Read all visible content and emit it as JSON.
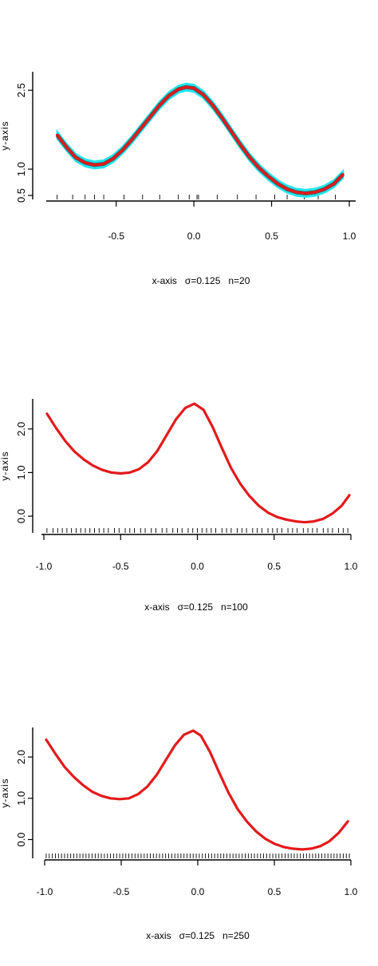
{
  "colors": {
    "fit": "#e31a1c",
    "band": "#22e6ee",
    "axis": "#000000"
  },
  "chart_data": [
    {
      "type": "line",
      "ylabel": "y-axis",
      "xlabel": {
        "axis": "x-axis",
        "sigma": "σ=0.125",
        "n": "n=20"
      },
      "xlim": [
        -0.95,
        1.0
      ],
      "ylim": [
        0.5,
        2.7
      ],
      "xticks": [
        "-0.5",
        "0.0",
        "0.5",
        "1.0"
      ],
      "xtick_values": [
        -0.5,
        0.0,
        0.5,
        1.0
      ],
      "yticks": [
        "0.5",
        "1.0",
        "2.5"
      ],
      "ytick_values": [
        0.5,
        1.0,
        2.5
      ],
      "band": true,
      "series": [
        {
          "x": [
            -0.88,
            -0.82,
            -0.76,
            -0.7,
            -0.64,
            -0.58,
            -0.52,
            -0.46,
            -0.4,
            -0.34,
            -0.28,
            -0.22,
            -0.16,
            -0.1,
            -0.05,
            0.0,
            0.06,
            0.12,
            0.18,
            0.24,
            0.3,
            0.36,
            0.42,
            0.48,
            0.54,
            0.6,
            0.66,
            0.72,
            0.78,
            0.84,
            0.9,
            0.96
          ],
          "y": [
            1.65,
            1.42,
            1.22,
            1.12,
            1.08,
            1.1,
            1.2,
            1.36,
            1.56,
            1.78,
            2.0,
            2.22,
            2.4,
            2.52,
            2.56,
            2.54,
            2.42,
            2.22,
            1.98,
            1.72,
            1.46,
            1.22,
            1.02,
            0.86,
            0.72,
            0.62,
            0.56,
            0.54,
            0.56,
            0.62,
            0.72,
            0.9
          ],
          "band_width": 0.07
        }
      ],
      "rug": [
        -0.88,
        -0.78,
        -0.7,
        -0.64,
        -0.58,
        -0.45,
        -0.33,
        -0.22,
        -0.1,
        -0.03,
        0.02,
        0.03,
        0.15,
        0.28,
        0.4,
        0.52,
        0.6,
        0.71,
        0.8,
        0.91
      ]
    },
    {
      "type": "line",
      "ylabel": "y-axis",
      "xlabel": {
        "axis": "x-axis",
        "sigma": "σ=0.125",
        "n": "n=100"
      },
      "xlim": [
        -1.0,
        1.0
      ],
      "ylim": [
        -0.2,
        2.6
      ],
      "xticks": [
        "-1.0",
        "-0.5",
        "0.0",
        "0.5",
        "1.0"
      ],
      "xtick_values": [
        -1.0,
        -0.5,
        0.0,
        0.5,
        1.0
      ],
      "yticks": [
        "0.0",
        "1.0",
        "2.0"
      ],
      "ytick_values": [
        0.0,
        1.0,
        2.0
      ],
      "band": false,
      "series": [
        {
          "x": [
            -0.98,
            -0.92,
            -0.86,
            -0.8,
            -0.74,
            -0.68,
            -0.62,
            -0.56,
            -0.5,
            -0.44,
            -0.38,
            -0.32,
            -0.26,
            -0.2,
            -0.14,
            -0.08,
            -0.02,
            0.04,
            0.1,
            0.16,
            0.22,
            0.28,
            0.34,
            0.4,
            0.46,
            0.52,
            0.58,
            0.64,
            0.7,
            0.76,
            0.82,
            0.88,
            0.94,
            0.99
          ],
          "y": [
            2.35,
            2.02,
            1.72,
            1.48,
            1.3,
            1.16,
            1.06,
            1.0,
            0.98,
            1.0,
            1.08,
            1.24,
            1.5,
            1.86,
            2.22,
            2.48,
            2.58,
            2.44,
            2.04,
            1.56,
            1.1,
            0.74,
            0.46,
            0.24,
            0.08,
            -0.02,
            -0.08,
            -0.12,
            -0.14,
            -0.12,
            -0.06,
            0.06,
            0.24,
            0.48
          ]
        }
      ],
      "rug": [
        -0.98,
        -0.94,
        -0.91,
        -0.88,
        -0.85,
        -0.82,
        -0.79,
        -0.76,
        -0.73,
        -0.7,
        -0.67,
        -0.64,
        -0.61,
        -0.58,
        -0.54,
        -0.51,
        -0.47,
        -0.44,
        -0.41,
        -0.37,
        -0.34,
        -0.3,
        -0.27,
        -0.23,
        -0.2,
        -0.16,
        -0.13,
        -0.1,
        -0.06,
        -0.03,
        0.0,
        0.03,
        0.06,
        0.09,
        0.12,
        0.16,
        0.19,
        0.22,
        0.26,
        0.29,
        0.32,
        0.36,
        0.39,
        0.42,
        0.46,
        0.49,
        0.52,
        0.55,
        0.59,
        0.62,
        0.65,
        0.69,
        0.72,
        0.75,
        0.78,
        0.82,
        0.85,
        0.88,
        0.92,
        0.95,
        0.98
      ]
    },
    {
      "type": "line",
      "ylabel": "y-axis",
      "xlabel": {
        "axis": "x-axis",
        "sigma": "σ=0.125",
        "n": "n=250"
      },
      "xlim": [
        -1.0,
        1.0
      ],
      "ylim": [
        -0.3,
        2.6
      ],
      "xticks": [
        "-1.0",
        "-0.5",
        "0.0",
        "0.5",
        "1.0"
      ],
      "xtick_values": [
        -1.0,
        -0.5,
        0.0,
        0.5,
        1.0
      ],
      "yticks": [
        "0.0",
        "1.0",
        "2.0"
      ],
      "ytick_values": [
        0.0,
        1.0,
        2.0
      ],
      "band": false,
      "series": [
        {
          "x": [
            -0.99,
            -0.93,
            -0.87,
            -0.81,
            -0.75,
            -0.69,
            -0.63,
            -0.57,
            -0.51,
            -0.45,
            -0.39,
            -0.33,
            -0.27,
            -0.21,
            -0.15,
            -0.09,
            -0.03,
            0.02,
            0.08,
            0.14,
            0.2,
            0.26,
            0.32,
            0.38,
            0.44,
            0.5,
            0.56,
            0.62,
            0.68,
            0.74,
            0.8,
            0.86,
            0.92,
            0.98
          ],
          "y": [
            2.42,
            2.08,
            1.76,
            1.52,
            1.32,
            1.16,
            1.06,
            1.0,
            0.98,
            1.0,
            1.1,
            1.28,
            1.56,
            1.92,
            2.28,
            2.54,
            2.64,
            2.52,
            2.12,
            1.62,
            1.14,
            0.74,
            0.44,
            0.2,
            0.02,
            -0.1,
            -0.18,
            -0.22,
            -0.24,
            -0.22,
            -0.16,
            -0.04,
            0.16,
            0.44
          ]
        }
      ],
      "rug": [
        -0.99,
        -0.97,
        -0.95,
        -0.93,
        -0.91,
        -0.89,
        -0.87,
        -0.85,
        -0.83,
        -0.81,
        -0.79,
        -0.77,
        -0.75,
        -0.73,
        -0.71,
        -0.69,
        -0.67,
        -0.65,
        -0.63,
        -0.61,
        -0.59,
        -0.57,
        -0.55,
        -0.53,
        -0.51,
        -0.49,
        -0.47,
        -0.45,
        -0.43,
        -0.41,
        -0.39,
        -0.37,
        -0.35,
        -0.33,
        -0.31,
        -0.29,
        -0.27,
        -0.25,
        -0.23,
        -0.21,
        -0.19,
        -0.17,
        -0.15,
        -0.13,
        -0.11,
        -0.09,
        -0.07,
        -0.05,
        -0.03,
        -0.01,
        0.01,
        0.03,
        0.05,
        0.07,
        0.09,
        0.11,
        0.13,
        0.15,
        0.17,
        0.19,
        0.21,
        0.23,
        0.25,
        0.27,
        0.29,
        0.31,
        0.33,
        0.35,
        0.37,
        0.39,
        0.41,
        0.43,
        0.45,
        0.47,
        0.49,
        0.51,
        0.53,
        0.55,
        0.57,
        0.59,
        0.61,
        0.63,
        0.65,
        0.67,
        0.69,
        0.71,
        0.73,
        0.75,
        0.77,
        0.79,
        0.81,
        0.83,
        0.85,
        0.87,
        0.89,
        0.91,
        0.93,
        0.95,
        0.97,
        0.99
      ]
    }
  ]
}
